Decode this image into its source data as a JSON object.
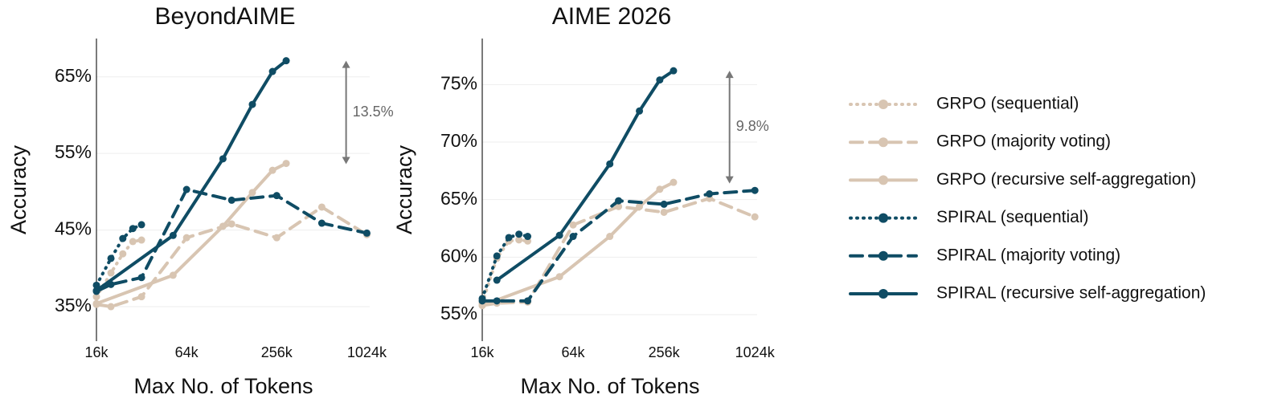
{
  "chart_data": [
    {
      "type": "line",
      "title": "BeyondAIME",
      "xlabel": "Max No. of Tokens",
      "ylabel": "Accuracy",
      "xscale": "log2",
      "xlim": [
        16,
        1070
      ],
      "xticks": [
        {
          "value": 16,
          "label": "16k"
        },
        {
          "value": 64,
          "label": "64k"
        },
        {
          "value": 256,
          "label": "256k"
        },
        {
          "value": 1024,
          "label": "1024k"
        }
      ],
      "ylim": [
        30.5,
        70
      ],
      "yticks": [
        {
          "value": 35,
          "label": "35%"
        },
        {
          "value": 45,
          "label": "45%"
        },
        {
          "value": 55,
          "label": "55%"
        },
        {
          "value": 65,
          "label": "65%"
        }
      ],
      "grid": true,
      "legend": "right",
      "series": [
        {
          "name": "GRPO (sequential)",
          "color": "#d8c5b2",
          "linestyle": "dotted",
          "x": [
            16,
            20,
            24,
            28,
            32
          ],
          "values": [
            36.3,
            39.4,
            41.9,
            43.5,
            43.7
          ]
        },
        {
          "name": "GRPO (majority voting)",
          "color": "#d8c5b2",
          "linestyle": "dashed",
          "x": [
            16,
            20,
            32,
            64,
            128,
            256,
            512,
            1024
          ],
          "values": [
            35.3,
            35.0,
            36.3,
            44.0,
            45.8,
            44.0,
            48.0,
            44.4
          ]
        },
        {
          "name": "GRPO (recursive self-aggregation)",
          "color": "#d8c5b2",
          "linestyle": "solid",
          "x": [
            16,
            52,
            112,
            176,
            240,
            296
          ],
          "values": [
            35.4,
            39.1,
            45.5,
            49.9,
            52.8,
            53.7
          ]
        },
        {
          "name": "SPIRAL (sequential)",
          "color": "#0f4c64",
          "linestyle": "dotted",
          "x": [
            16,
            20,
            24,
            28,
            32
          ],
          "values": [
            37.8,
            41.3,
            43.9,
            45.2,
            45.7
          ]
        },
        {
          "name": "SPIRAL (majority voting)",
          "color": "#0f4c64",
          "linestyle": "dashed",
          "x": [
            16,
            20,
            32,
            64,
            128,
            256,
            512,
            1024
          ],
          "values": [
            37.0,
            37.9,
            38.8,
            50.3,
            48.9,
            49.5,
            45.9,
            44.6
          ]
        },
        {
          "name": "SPIRAL (recursive self-aggregation)",
          "color": "#0f4c64",
          "linestyle": "solid",
          "x": [
            16,
            52,
            112,
            176,
            240,
            296
          ],
          "values": [
            37.1,
            44.3,
            54.3,
            61.4,
            65.7,
            67.1
          ]
        }
      ],
      "annotation": {
        "label": "13.5%",
        "x": 744,
        "y": [
          53.6,
          67.1
        ]
      }
    },
    {
      "type": "line",
      "title": "AIME 2026",
      "xlabel": "Max No. of Tokens",
      "ylabel": "Accuracy",
      "xscale": "log2",
      "xlim": [
        16,
        1060
      ],
      "xticks": [
        {
          "value": 16,
          "label": "16k"
        },
        {
          "value": 64,
          "label": "64k"
        },
        {
          "value": 256,
          "label": "256k"
        },
        {
          "value": 1024,
          "label": "1024k"
        }
      ],
      "ylim": [
        52.7,
        79
      ],
      "yticks": [
        {
          "value": 55,
          "label": "55%"
        },
        {
          "value": 60,
          "label": "60%"
        },
        {
          "value": 65,
          "label": "65%"
        },
        {
          "value": 70,
          "label": "70%"
        },
        {
          "value": 75,
          "label": "75%"
        }
      ],
      "grid": true,
      "series": [
        {
          "color": "#d8c5b2",
          "linestyle": "dotted",
          "x": [
            16,
            20,
            24,
            28,
            32
          ],
          "values": [
            56.0,
            59.9,
            61.4,
            61.5,
            61.4
          ]
        },
        {
          "color": "#d8c5b2",
          "linestyle": "dashed",
          "x": [
            16,
            20,
            32,
            64,
            128,
            256,
            512,
            1024
          ],
          "values": [
            55.8,
            56.0,
            56.1,
            62.8,
            64.4,
            63.9,
            65.1,
            63.5
          ]
        },
        {
          "color": "#d8c5b2",
          "linestyle": "solid",
          "x": [
            16,
            52,
            112,
            176,
            240,
            296
          ],
          "values": [
            55.8,
            58.3,
            61.8,
            64.4,
            65.9,
            66.5
          ]
        },
        {
          "color": "#0f4c64",
          "linestyle": "dotted",
          "x": [
            16,
            20,
            24,
            28,
            32
          ],
          "values": [
            56.4,
            60.1,
            61.7,
            62.0,
            61.8
          ]
        },
        {
          "color": "#0f4c64",
          "linestyle": "dashed",
          "x": [
            16,
            20,
            32,
            64,
            128,
            256,
            512,
            1024
          ],
          "values": [
            56.2,
            56.2,
            56.2,
            61.8,
            64.9,
            64.6,
            65.5,
            65.8
          ]
        },
        {
          "color": "#0f4c64",
          "linestyle": "solid",
          "x": [
            20,
            52,
            112,
            176,
            240,
            296
          ],
          "values": [
            58.0,
            61.9,
            68.1,
            72.7,
            75.4,
            76.2
          ]
        }
      ],
      "annotation": {
        "label": "9.8%",
        "x": 696,
        "y": [
          66.4,
          76.2
        ]
      }
    }
  ]
}
